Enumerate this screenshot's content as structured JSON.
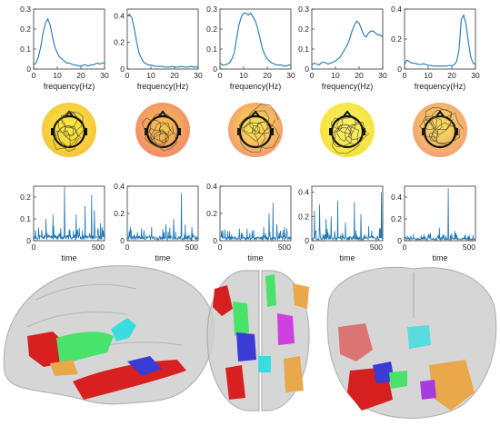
{
  "colors": {
    "line": "#1f77b4",
    "axis": "#333333",
    "map_high": "#f7ec3b",
    "map_mid": "#f5b335",
    "map_low": "#f28c6c",
    "brain_shell": "#c8c8c8"
  },
  "chart_data": [
    {
      "type": "line",
      "panel": "spectrum-1",
      "xlabel": "frequency(Hz)",
      "xlim": [
        0,
        30
      ],
      "ylim": [
        0,
        0.3
      ],
      "xticks": [
        "0",
        "10",
        "20",
        "30"
      ],
      "yticks": [
        "0",
        "0.1",
        "0.2",
        "0.3"
      ],
      "x": [
        0,
        1,
        2,
        3,
        4,
        5,
        6,
        7,
        8,
        9,
        10,
        11,
        12,
        13,
        14,
        15,
        16,
        17,
        18,
        19,
        20,
        21,
        22,
        23,
        24,
        25,
        26,
        27,
        28,
        29,
        30
      ],
      "y": [
        0.02,
        0.03,
        0.06,
        0.11,
        0.18,
        0.23,
        0.25,
        0.22,
        0.16,
        0.11,
        0.08,
        0.06,
        0.05,
        0.04,
        0.03,
        0.03,
        0.025,
        0.02,
        0.02,
        0.015,
        0.015,
        0.02,
        0.02,
        0.015,
        0.02,
        0.02,
        0.025,
        0.03,
        0.025,
        0.03,
        0.03
      ]
    },
    {
      "type": "line",
      "panel": "spectrum-2",
      "xlabel": "frequency(Hz)",
      "xlim": [
        0,
        30
      ],
      "ylim": [
        0,
        0.45
      ],
      "xticks": [
        "0",
        "10",
        "20",
        "30"
      ],
      "yticks": [
        "0",
        "0.2",
        "0.4"
      ],
      "x": [
        0,
        1,
        2,
        3,
        4,
        5,
        6,
        7,
        8,
        9,
        10,
        11,
        12,
        13,
        14,
        15,
        16,
        17,
        18,
        19,
        20,
        21,
        22,
        23,
        24,
        25,
        26,
        27,
        28,
        29,
        30
      ],
      "y": [
        0.4,
        0.41,
        0.38,
        0.3,
        0.2,
        0.12,
        0.08,
        0.05,
        0.04,
        0.03,
        0.03,
        0.025,
        0.02,
        0.02,
        0.02,
        0.02,
        0.015,
        0.015,
        0.015,
        0.02,
        0.015,
        0.015,
        0.015,
        0.02,
        0.015,
        0.015,
        0.015,
        0.02,
        0.015,
        0.015,
        0.015
      ]
    },
    {
      "type": "line",
      "panel": "spectrum-3",
      "xlabel": "frequency(Hz)",
      "xlim": [
        0,
        30
      ],
      "ylim": [
        0,
        0.3
      ],
      "xticks": [
        "0",
        "10",
        "20",
        "30"
      ],
      "yticks": [
        "0",
        "0.1",
        "0.2",
        "0.3"
      ],
      "x": [
        0,
        1,
        2,
        3,
        4,
        5,
        6,
        7,
        8,
        9,
        10,
        11,
        12,
        13,
        14,
        15,
        16,
        17,
        18,
        19,
        20,
        21,
        22,
        23,
        24,
        25,
        26,
        27,
        28,
        29,
        30
      ],
      "y": [
        0.03,
        0.02,
        0.02,
        0.025,
        0.03,
        0.05,
        0.08,
        0.15,
        0.22,
        0.26,
        0.28,
        0.28,
        0.27,
        0.28,
        0.26,
        0.24,
        0.2,
        0.15,
        0.1,
        0.07,
        0.05,
        0.04,
        0.03,
        0.025,
        0.02,
        0.02,
        0.02,
        0.015,
        0.015,
        0.02,
        0.02
      ]
    },
    {
      "type": "line",
      "panel": "spectrum-4",
      "xlabel": "frequency(Hz)",
      "xlim": [
        0,
        30
      ],
      "ylim": [
        0,
        0.3
      ],
      "xticks": [
        "0",
        "10",
        "20",
        "30"
      ],
      "yticks": [
        "0",
        "0.1",
        "0.2",
        "0.3"
      ],
      "x": [
        0,
        1,
        2,
        3,
        4,
        5,
        6,
        7,
        8,
        9,
        10,
        11,
        12,
        13,
        14,
        15,
        16,
        17,
        18,
        19,
        20,
        21,
        22,
        23,
        24,
        25,
        26,
        27,
        28,
        29,
        30
      ],
      "y": [
        0.02,
        0.03,
        0.025,
        0.02,
        0.03,
        0.035,
        0.03,
        0.025,
        0.03,
        0.035,
        0.04,
        0.05,
        0.06,
        0.08,
        0.1,
        0.12,
        0.15,
        0.19,
        0.22,
        0.24,
        0.23,
        0.2,
        0.17,
        0.16,
        0.18,
        0.19,
        0.19,
        0.18,
        0.17,
        0.17,
        0.16
      ]
    },
    {
      "type": "line",
      "panel": "spectrum-5",
      "xlabel": "frequency(Hz)",
      "xlim": [
        0,
        30
      ],
      "ylim": [
        0,
        0.4
      ],
      "xticks": [
        "0",
        "10",
        "20",
        "30"
      ],
      "yticks": [
        "0",
        "0.2",
        "0.4"
      ],
      "x": [
        0,
        1,
        2,
        3,
        4,
        5,
        6,
        7,
        8,
        9,
        10,
        11,
        12,
        13,
        14,
        15,
        16,
        17,
        18,
        19,
        20,
        21,
        22,
        23,
        24,
        25,
        26,
        27,
        28,
        29,
        30
      ],
      "y": [
        0.03,
        0.06,
        0.05,
        0.04,
        0.04,
        0.035,
        0.03,
        0.03,
        0.035,
        0.03,
        0.025,
        0.025,
        0.02,
        0.02,
        0.02,
        0.02,
        0.02,
        0.02,
        0.02,
        0.025,
        0.02,
        0.03,
        0.05,
        0.12,
        0.33,
        0.36,
        0.3,
        0.18,
        0.08,
        0.04,
        0.03
      ]
    },
    {
      "type": "line",
      "panel": "timecourse-1",
      "xlabel": "time",
      "xlim": [
        0,
        550
      ],
      "ylim": [
        0,
        0.25
      ],
      "xticks": [
        "0",
        "500"
      ],
      "yticks": [
        "0",
        "0.1",
        "0.2"
      ],
      "noise": 0.02,
      "seed": 11,
      "spikes": [
        [
          40,
          0.06
        ],
        [
          95,
          0.1
        ],
        [
          150,
          0.12
        ],
        [
          240,
          0.25
        ],
        [
          330,
          0.12
        ],
        [
          400,
          0.16
        ],
        [
          450,
          0.21
        ],
        [
          470,
          0.14
        ],
        [
          520,
          0.08
        ]
      ]
    },
    {
      "type": "line",
      "panel": "timecourse-2",
      "xlabel": "time",
      "xlim": [
        0,
        550
      ],
      "ylim": [
        0,
        0.4
      ],
      "xticks": [
        "0",
        "500"
      ],
      "yticks": [
        "0",
        "0.2",
        "0.4"
      ],
      "noise": 0.03,
      "seed": 23,
      "spikes": [
        [
          30,
          0.08
        ],
        [
          110,
          0.09
        ],
        [
          190,
          0.1
        ],
        [
          300,
          0.12
        ],
        [
          360,
          0.16
        ],
        [
          420,
          0.35
        ],
        [
          450,
          0.12
        ],
        [
          500,
          0.1
        ]
      ]
    },
    {
      "type": "line",
      "panel": "timecourse-3",
      "xlabel": "time",
      "xlim": [
        0,
        550
      ],
      "ylim": [
        0,
        0.4
      ],
      "xticks": [
        "0",
        "500"
      ],
      "yticks": [
        "0",
        "0.2",
        "0.4"
      ],
      "noise": 0.025,
      "seed": 37,
      "spikes": [
        [
          60,
          0.07
        ],
        [
          150,
          0.09
        ],
        [
          260,
          0.08
        ],
        [
          340,
          0.1
        ],
        [
          380,
          0.2
        ],
        [
          410,
          0.28
        ],
        [
          440,
          0.12
        ],
        [
          500,
          0.1
        ]
      ]
    },
    {
      "type": "line",
      "panel": "timecourse-4",
      "xlabel": "time",
      "xlim": [
        0,
        550
      ],
      "ylim": [
        0,
        0.45
      ],
      "xticks": [
        "0",
        "500"
      ],
      "yticks": [
        "0",
        "0.2",
        "0.4"
      ],
      "noise": 0.03,
      "seed": 49,
      "spikes": [
        [
          20,
          0.25
        ],
        [
          60,
          0.3
        ],
        [
          110,
          0.18
        ],
        [
          150,
          0.2
        ],
        [
          200,
          0.33
        ],
        [
          260,
          0.15
        ],
        [
          330,
          0.32
        ],
        [
          380,
          0.22
        ],
        [
          440,
          0.12
        ],
        [
          540,
          0.4
        ]
      ]
    },
    {
      "type": "line",
      "panel": "timecourse-5",
      "xlabel": "time",
      "xlim": [
        0,
        550
      ],
      "ylim": [
        0,
        0.5
      ],
      "xticks": [
        "0",
        "500"
      ],
      "yticks": [
        "0",
        "0.2",
        "0.4"
      ],
      "noise": 0.02,
      "seed": 61,
      "spikes": [
        [
          70,
          0.06
        ],
        [
          130,
          0.05
        ],
        [
          200,
          0.07
        ],
        [
          270,
          0.12
        ],
        [
          340,
          0.48
        ],
        [
          390,
          0.09
        ],
        [
          470,
          0.06
        ],
        [
          530,
          0.05
        ]
      ]
    }
  ],
  "topomaps": [
    {
      "name": "topomap-1",
      "face": "#f5c53a",
      "hot": "#f9ee45"
    },
    {
      "name": "topomap-2",
      "face": "#f28c6c",
      "hot": "#f6c84a"
    },
    {
      "name": "topomap-3",
      "face": "#f29a6e",
      "hot": "#f9ef4c"
    },
    {
      "name": "topomap-4",
      "face": "#f7e23a",
      "hot": "#f9f070"
    },
    {
      "name": "topomap-5",
      "face": "#f3a173",
      "hot": "#f7e35a"
    }
  ]
}
